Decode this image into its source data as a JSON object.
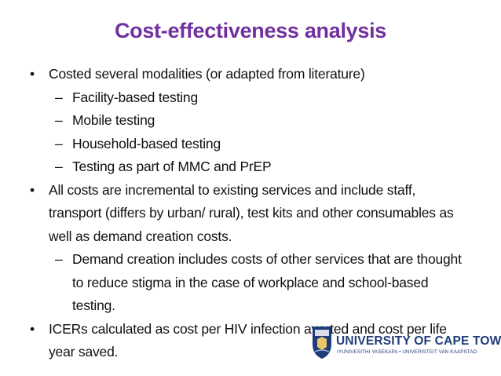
{
  "title": "Cost-effectiveness analysis",
  "bullets": [
    {
      "text": "Costed several modalities (or adapted from literature)",
      "subitems": [
        "Facility-based testing",
        "Mobile testing",
        "Household-based testing",
        "Testing as part of MMC and PrEP"
      ]
    },
    {
      "text": "All costs are incremental to existing services and include staff, transport (differs by urban/ rural), test kits and other consumables as well as demand creation costs.",
      "subitems": [
        "Demand creation includes costs of other services that are thought to reduce stigma in the case of workplace and school-based testing."
      ]
    },
    {
      "text": "ICERs calculated as cost per HIV infection averted and cost per life year saved.",
      "subitems": []
    }
  ],
  "logo": {
    "name": "UNIVERSITY OF CAPE TOWN",
    "tagline": "IYUNIVESITHI YASEKAPA • UNIVERSITEIT VAN KAAPSTAD"
  }
}
